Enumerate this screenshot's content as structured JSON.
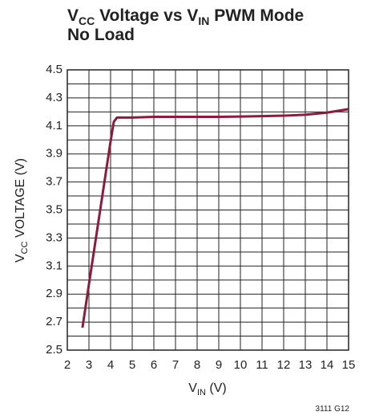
{
  "chart_data": {
    "type": "line",
    "title": [
      "V",
      "CC",
      " Voltage vs V",
      "IN",
      " PWM Mode",
      "No Load"
    ],
    "x_label": [
      "V",
      "IN",
      " (V)"
    ],
    "y_label": [
      "V",
      "CC",
      " VOLTAGE (V)"
    ],
    "footnote": "3111 G12",
    "series": [
      {
        "name": "VCC",
        "color": "#8c1c3c",
        "x": [
          2.7,
          3.0,
          3.5,
          4.0,
          4.15,
          4.3,
          4.5,
          5,
          6,
          7,
          8,
          9,
          10,
          11,
          12,
          13,
          14,
          15
        ],
        "values": [
          2.66,
          2.97,
          3.48,
          3.99,
          4.13,
          4.16,
          4.16,
          4.16,
          4.165,
          4.165,
          4.165,
          4.165,
          4.167,
          4.17,
          4.173,
          4.18,
          4.195,
          4.22
        ]
      }
    ],
    "xlim": [
      2,
      15
    ],
    "xticks": [
      2,
      3,
      4,
      5,
      6,
      7,
      8,
      9,
      10,
      11,
      12,
      13,
      14,
      15
    ],
    "ylim": [
      2.5,
      4.5
    ],
    "yticks": [
      2.5,
      2.7,
      2.9,
      3.1,
      3.3,
      3.5,
      3.7,
      3.9,
      4.1,
      4.3,
      4.5
    ],
    "yminor": [
      2.6,
      2.8,
      3.0,
      3.2,
      3.4,
      3.6,
      3.8,
      4.0,
      4.2,
      4.4
    ],
    "grid": true
  }
}
